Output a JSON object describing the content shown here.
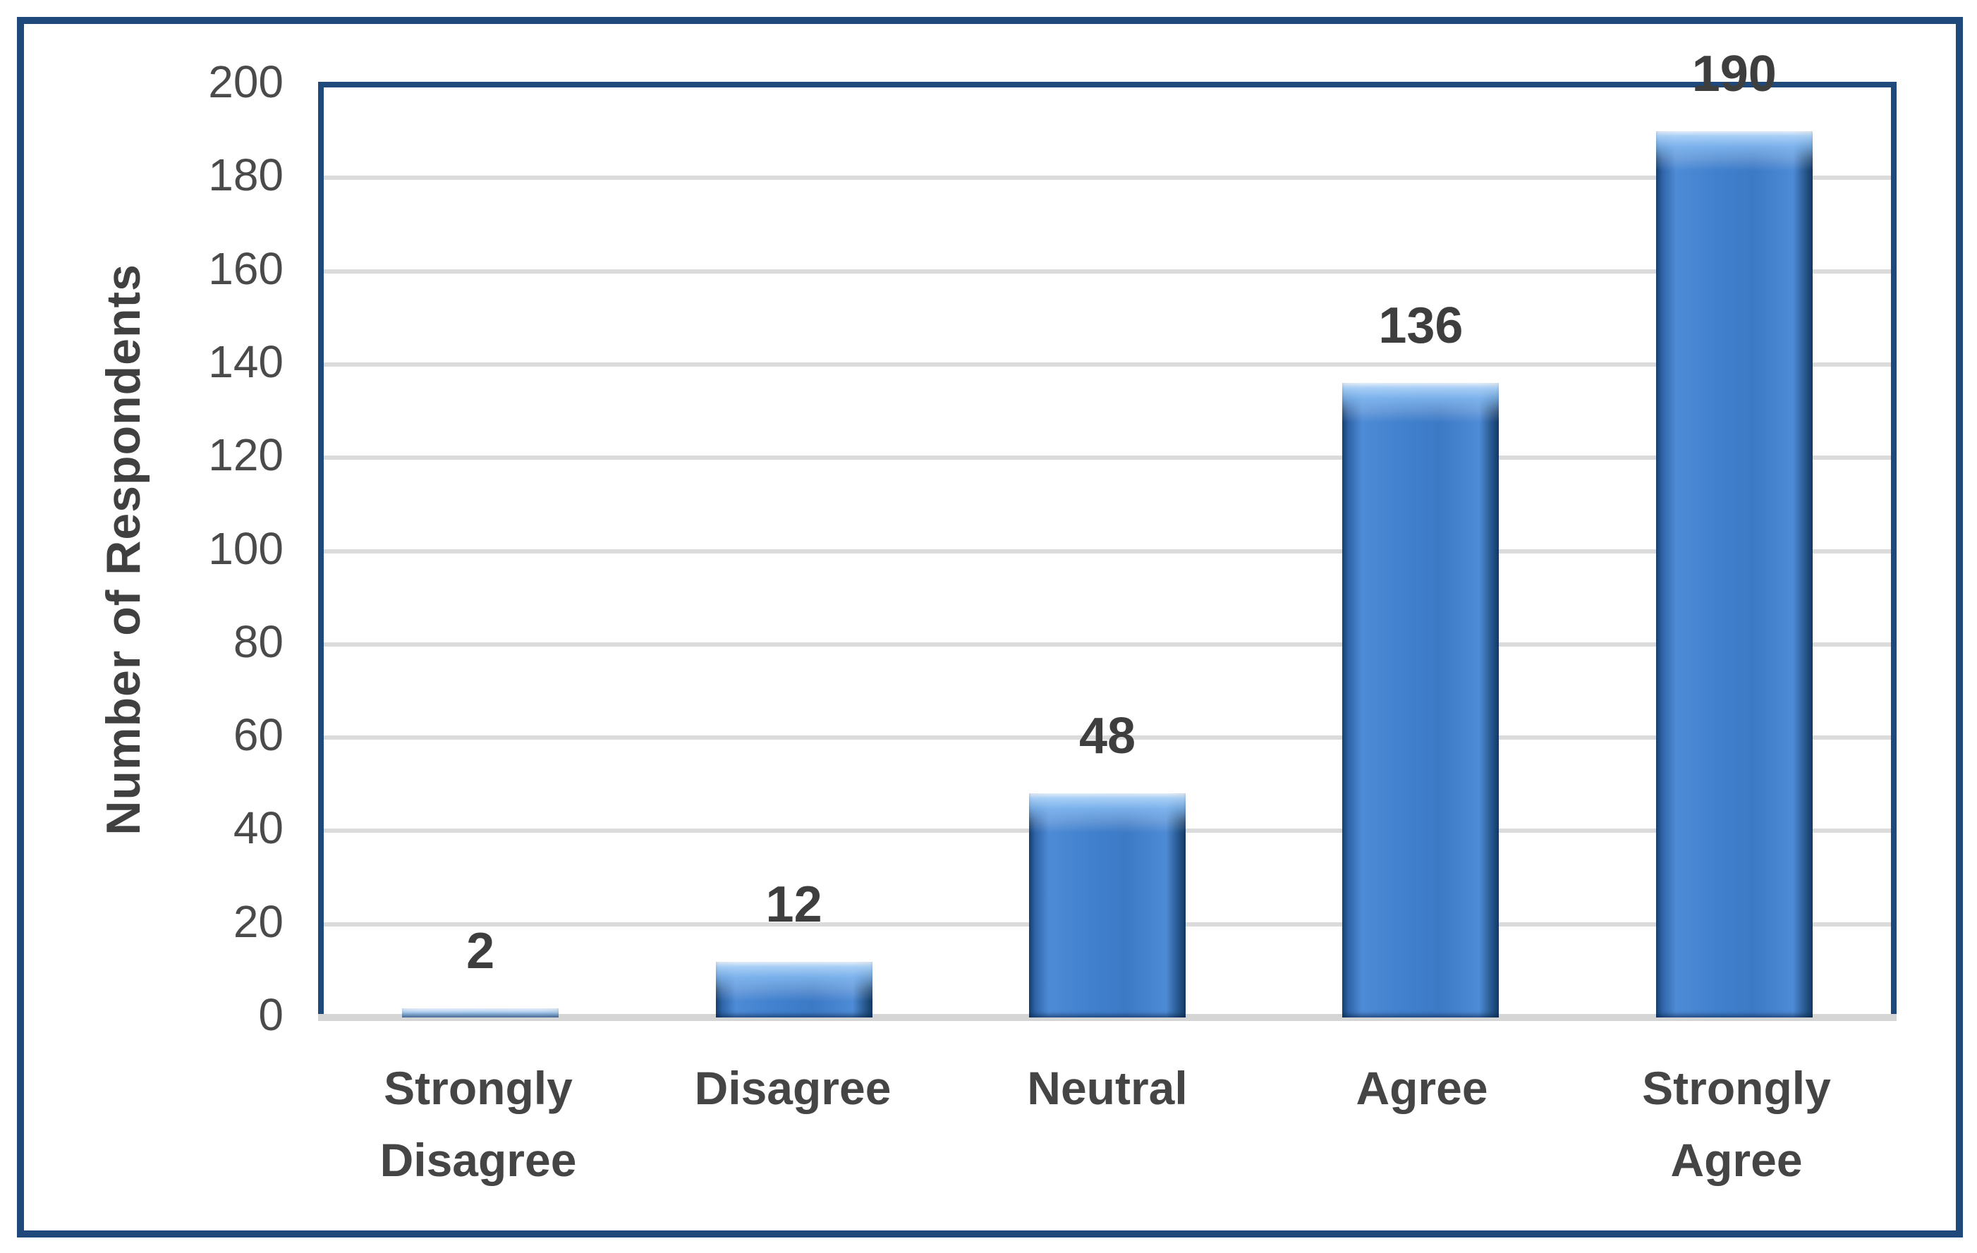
{
  "chart_data": {
    "type": "bar",
    "title": "",
    "xlabel": "",
    "ylabel": "Number of Respondents",
    "categories": [
      "Strongly Disagree",
      "Disagree",
      "Neutral",
      "Agree",
      "Strongly Agree"
    ],
    "values": [
      2,
      12,
      48,
      136,
      190
    ],
    "data_labels": [
      "2",
      "12",
      "48",
      "136",
      "190"
    ],
    "ylim": [
      0,
      200
    ],
    "ytick_step": 20,
    "yticks": [
      0,
      20,
      40,
      60,
      80,
      100,
      120,
      140,
      160,
      180,
      200
    ],
    "grid": true,
    "legend_position": "none",
    "colors": {
      "bar_fill": "#3D7AC6",
      "bar_edge": "#16406F",
      "bar_highlight": "#9CC6F0",
      "frame_border": "#20497B",
      "gridline": "#DBDBDB",
      "axis_line": "#D5D5D5",
      "tick_text": "#4A4A4A",
      "label_text": "#3E3E3E"
    }
  }
}
